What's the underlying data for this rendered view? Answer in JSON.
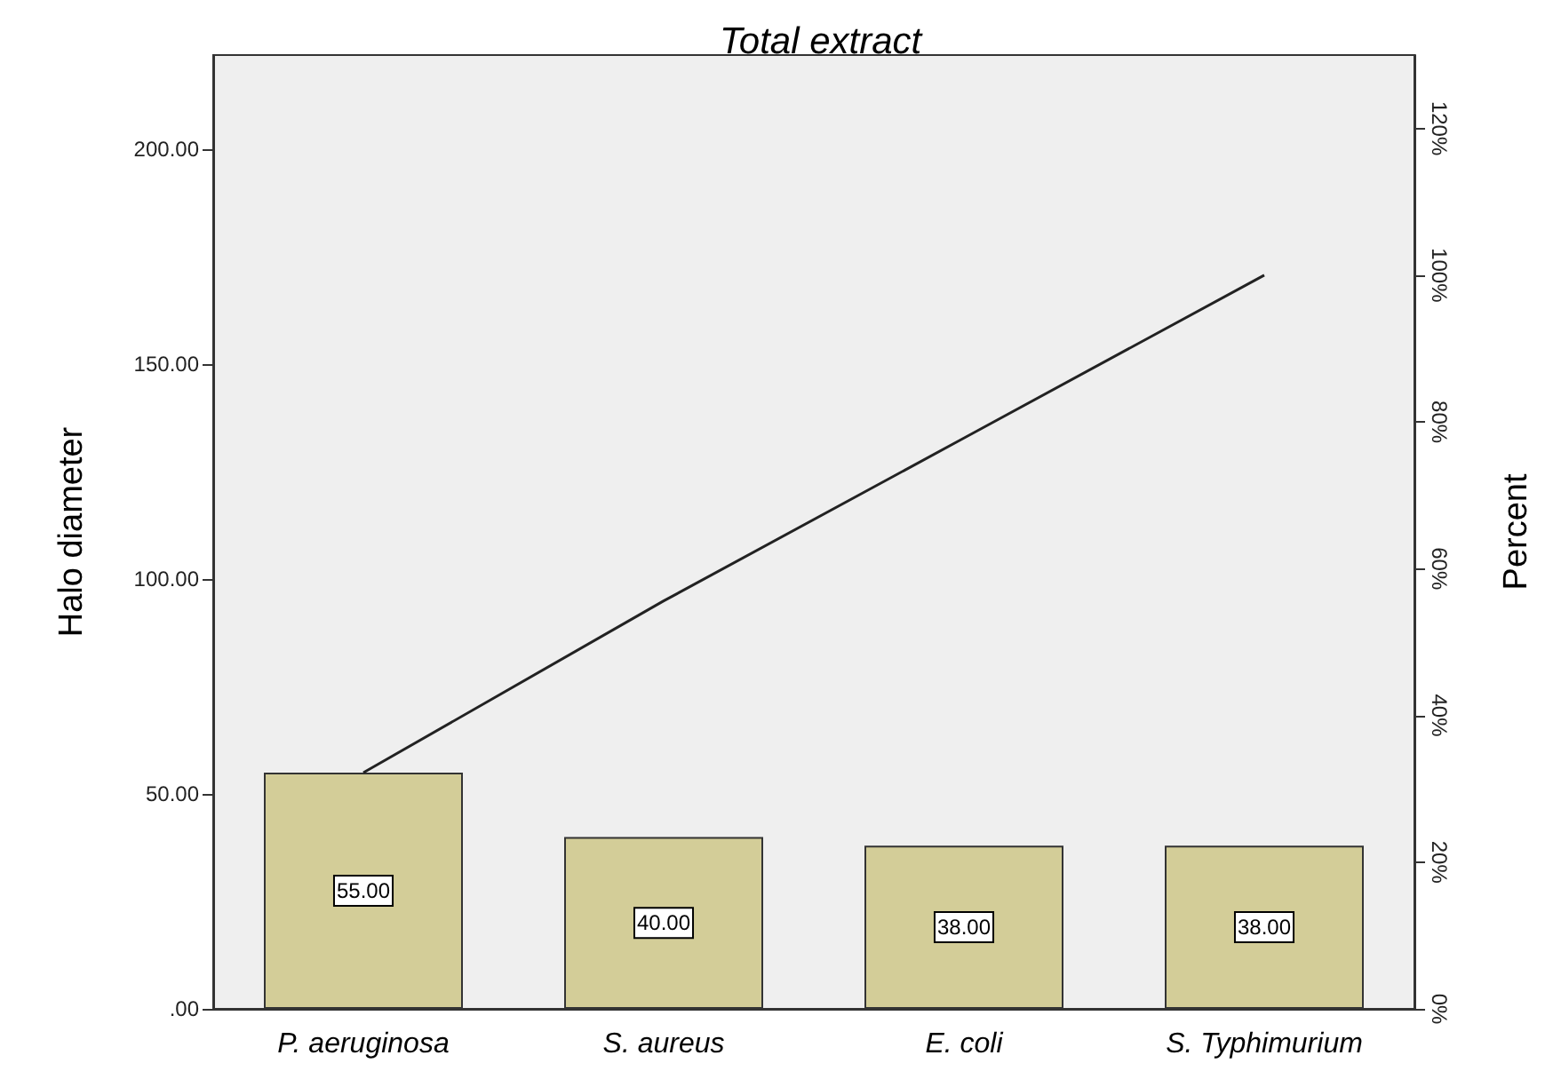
{
  "chart_data": {
    "type": "bar",
    "title": "Total extract",
    "ylabel": "Halo diameter",
    "y2label": "Percent",
    "categories": [
      "P. aeruginosa",
      "S. aureus",
      "E. coli",
      "S. Typhimurium"
    ],
    "series": [
      {
        "color": "#d3cd98",
        "values": [
          55,
          40,
          38,
          38
        ],
        "value_labels": [
          "55.00",
          "40.00",
          "38.00",
          "38.00"
        ]
      },
      {
        "type": "line",
        "axis": "y2",
        "color": "#222222",
        "values": [
          32.2,
          55.6,
          77.8,
          100
        ],
        "marker": "none",
        "line_style": "solid"
      }
    ],
    "ylim": [
      0,
      222
    ],
    "yticks": [
      {
        "value": 0,
        "label": ".00"
      },
      {
        "value": 50,
        "label": "50.00"
      },
      {
        "value": 100,
        "label": "100.00"
      },
      {
        "value": 150,
        "label": "150.00"
      },
      {
        "value": 200,
        "label": "200.00"
      }
    ],
    "y2lim": [
      0,
      130
    ],
    "y2ticks": [
      {
        "value": 0,
        "label": "0%"
      },
      {
        "value": 20,
        "label": "20%"
      },
      {
        "value": 40,
        "label": "40%"
      },
      {
        "value": 60,
        "label": "60%"
      },
      {
        "value": 80,
        "label": "80%"
      },
      {
        "value": 100,
        "label": "100%"
      },
      {
        "value": 120,
        "label": "120%"
      }
    ],
    "grid": false
  }
}
